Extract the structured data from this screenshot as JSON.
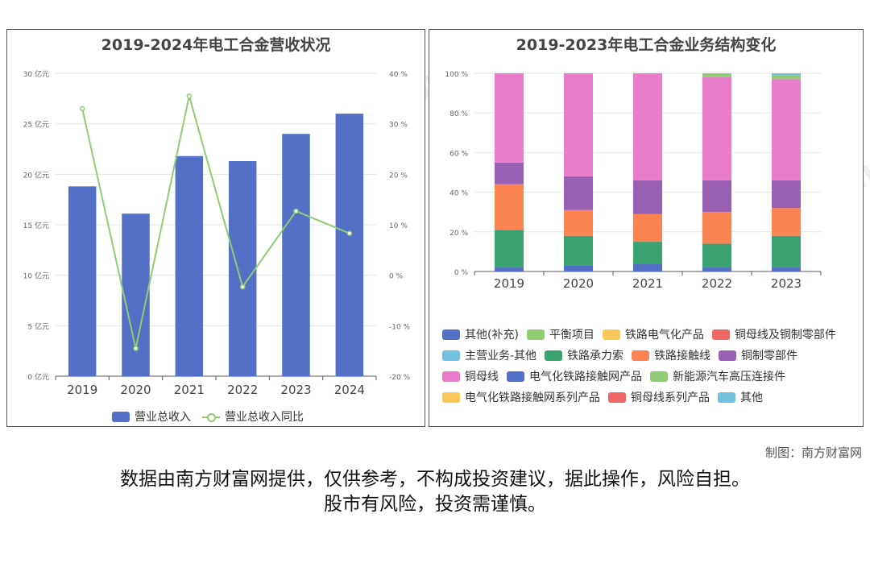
{
  "left_chart": {
    "title": "2019-2024年电工合金营收状况",
    "left_axis_ticks": [
      "0 亿元",
      "5 亿元",
      "10 亿元",
      "15 亿元",
      "20 亿元",
      "25 亿元",
      "30 亿元"
    ],
    "right_axis_ticks": [
      "-20 %",
      "-10 %",
      "0 %",
      "10 %",
      "20 %",
      "30 %",
      "40 %"
    ],
    "legend": {
      "bar": "营业总收入",
      "line": "营业总收入同比"
    }
  },
  "right_chart": {
    "title": "2019-2023年电工合金业务结构变化",
    "y_ticks": [
      "0 %",
      "20 %",
      "40 %",
      "60 %",
      "80 %",
      "100 %"
    ]
  },
  "chart_data": [
    {
      "type": "bar",
      "title": "2019-2024年电工合金营收状况",
      "categories": [
        "2019",
        "2020",
        "2021",
        "2022",
        "2023",
        "2024"
      ],
      "series": [
        {
          "name": "营业总收入",
          "type": "bar",
          "axis": "left",
          "unit": "亿元",
          "values": [
            18.8,
            16.1,
            21.8,
            21.3,
            24.0,
            26.0
          ],
          "color": "#5470c6"
        },
        {
          "name": "营业总收入同比",
          "type": "line",
          "axis": "right",
          "unit": "%",
          "values": [
            33.0,
            -14.5,
            35.5,
            -2.3,
            12.7,
            8.3
          ],
          "color": "#91cc75"
        }
      ],
      "ylim_left": [
        0,
        30
      ],
      "ylim_right": [
        -20,
        40
      ]
    },
    {
      "type": "bar",
      "stacked": true,
      "title": "2019-2023年电工合金业务结构变化",
      "categories": [
        "2019",
        "2020",
        "2021",
        "2022",
        "2023"
      ],
      "ylim": [
        0,
        100
      ],
      "unit": "%",
      "series": [
        {
          "name": "其他(补充)",
          "color": "#5470c6",
          "values": [
            2,
            3,
            4,
            2,
            2
          ]
        },
        {
          "name": "平衡项目",
          "color": "#91cc75",
          "values": [
            0,
            0,
            0,
            0,
            0
          ]
        },
        {
          "name": "铁路电气化产品",
          "color": "#fac858",
          "values": [
            0,
            0,
            0,
            0,
            0
          ]
        },
        {
          "name": "铜母线及铜制零部件",
          "color": "#ee6666",
          "values": [
            0,
            0,
            0,
            0,
            0
          ]
        },
        {
          "name": "主营业务-其他",
          "color": "#73c0de",
          "values": [
            0,
            0,
            0,
            0,
            0
          ]
        },
        {
          "name": "铁路承力索",
          "color": "#3ba272",
          "values": [
            19,
            15,
            11,
            12,
            16
          ]
        },
        {
          "name": "铁路接触线",
          "color": "#fc8452",
          "values": [
            23,
            13,
            14,
            16,
            14
          ]
        },
        {
          "name": "铜制零部件",
          "color": "#9a60b4",
          "values": [
            11,
            17,
            17,
            16,
            14
          ]
        },
        {
          "name": "铜母线",
          "color": "#ea7ccc",
          "values": [
            45,
            52,
            54,
            52,
            51
          ]
        },
        {
          "name": "电气化铁路接触网产品",
          "color": "#5470c6",
          "values": [
            0,
            0,
            0,
            0,
            0
          ]
        },
        {
          "name": "新能源汽车高压连接件",
          "color": "#91cc75",
          "values": [
            0,
            0,
            0,
            2,
            2
          ]
        },
        {
          "name": "电气化铁路接触网系列产品",
          "color": "#fac858",
          "values": [
            0,
            0,
            0,
            0,
            0
          ]
        },
        {
          "name": "铜母线系列产品",
          "color": "#ee6666",
          "values": [
            0,
            0,
            0,
            0,
            0
          ]
        },
        {
          "name": "其他",
          "color": "#73c0de",
          "values": [
            0,
            0,
            0,
            0,
            1
          ]
        }
      ]
    }
  ],
  "credit": "制图：南方财富网",
  "disclaimer_line1": "数据由南方财富网提供，仅供参考，不构成投资建议，据此操作，风险自担。",
  "disclaimer_line2": "股市有风险，投资需谨慎。",
  "watermark": {
    "cn": "南方财富网",
    "en": "southmoney.com"
  }
}
